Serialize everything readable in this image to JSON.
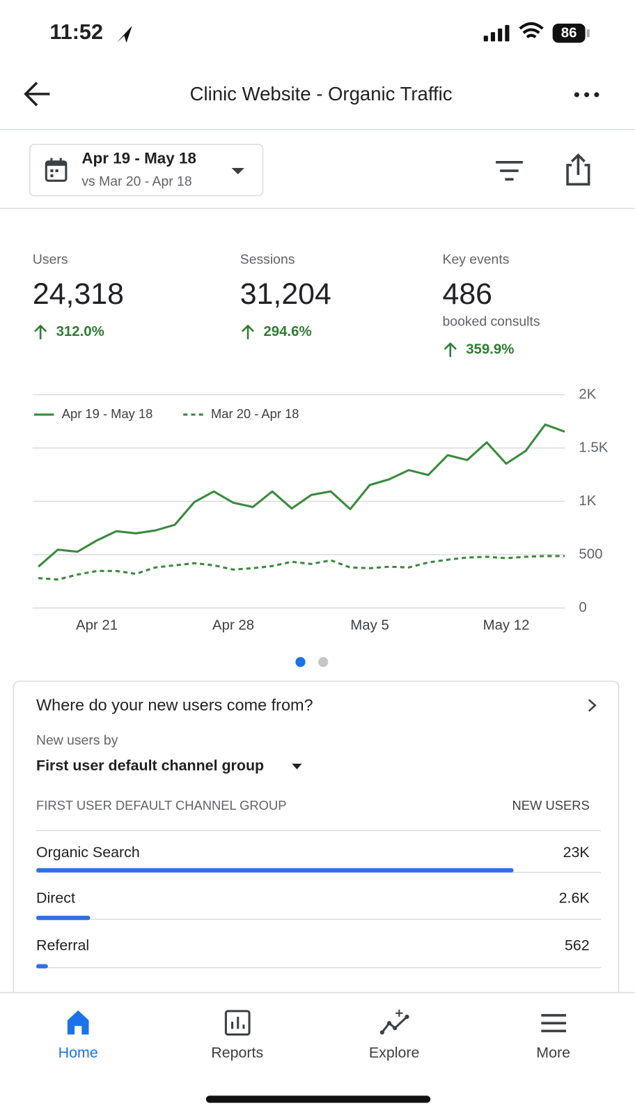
{
  "status_bar": {
    "time": "11:52",
    "battery": "86"
  },
  "header": {
    "title": "Clinic Website - Organic Traffic"
  },
  "date_range": {
    "current": "Apr 19 - May 18",
    "comparison": "vs Mar 20 - Apr 18"
  },
  "metrics": [
    {
      "label": "Users",
      "value": "24,318",
      "change": "312.0%"
    },
    {
      "label": "Sessions",
      "value": "31,204",
      "change": "294.6%"
    },
    {
      "label": "Key events",
      "value": "486",
      "subtitle": "booked consults",
      "change": "359.9%"
    }
  ],
  "chart_data": {
    "type": "line",
    "categories": [
      null,
      null,
      null,
      "Apr 21",
      null,
      null,
      null,
      null,
      null,
      null,
      "Apr 28",
      null,
      null,
      null,
      null,
      null,
      null,
      "May 5",
      null,
      null,
      null,
      null,
      null,
      null,
      "May 12",
      null,
      null,
      null
    ],
    "series": [
      {
        "name": "Apr 19 - May 18",
        "color": "#3a8a3c",
        "line_style": "solid",
        "values": [
          387,
          547,
          527,
          633,
          720,
          700,
          727,
          780,
          993,
          1093,
          987,
          947,
          1093,
          933,
          1060,
          1093,
          927,
          1153,
          1207,
          1293,
          1247,
          1433,
          1387,
          1553,
          1353,
          1473,
          1720,
          1653
        ]
      },
      {
        "name": "Mar 20 - Apr 18",
        "color": "#3a8a3c",
        "line_style": "dashed",
        "values": [
          280,
          267,
          313,
          347,
          347,
          320,
          380,
          400,
          420,
          400,
          360,
          373,
          393,
          433,
          413,
          447,
          380,
          373,
          387,
          380,
          427,
          453,
          473,
          480,
          467,
          480,
          487,
          487
        ]
      }
    ],
    "ylim": [
      0,
      2000
    ],
    "yticks": [
      0,
      500,
      {
        "value": 1000,
        "label": "1K"
      },
      {
        "value": 1500,
        "label": "1.5K"
      },
      {
        "value": 2000,
        "label": "2K"
      }
    ],
    "grid": true,
    "legend": "top-left"
  },
  "card": {
    "title": "Where do your new users come from?",
    "subtitle": "New users by",
    "dimension": "First user default channel group",
    "columns": [
      "FIRST USER DEFAULT CHANNEL GROUP",
      "NEW USERS"
    ],
    "rows": [
      {
        "channel": "Organic Search",
        "value": 23000,
        "label": "23K"
      },
      {
        "channel": "Direct",
        "value": 2600,
        "label": "2.6K"
      },
      {
        "channel": "Referral",
        "value": 562,
        "label": "562"
      }
    ],
    "bar_color": "#2f6fe4"
  },
  "nav": [
    "Home",
    "Reports",
    "Explore",
    "More"
  ]
}
